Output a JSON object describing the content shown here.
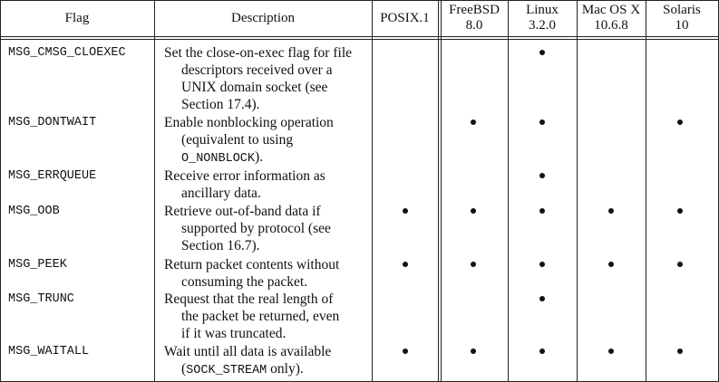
{
  "headers": {
    "flag": "Flag",
    "description": "Description",
    "posix": [
      "POSIX.1"
    ],
    "freebsd": [
      "FreeBSD",
      "8.0"
    ],
    "linux": [
      "Linux",
      "3.2.0"
    ],
    "macos": [
      "Mac OS X",
      "10.6.8"
    ],
    "solaris": [
      "Solaris",
      "10"
    ]
  },
  "rows": [
    {
      "flag": "MSG_CMSG_CLOEXEC",
      "description": [
        "Set the close-on-exec flag for file",
        "descriptors received over a",
        "UNIX domain socket (see",
        "Section 17.4)."
      ],
      "support": {
        "posix": false,
        "freebsd": false,
        "linux": true,
        "macos": false,
        "solaris": false
      }
    },
    {
      "flag": "MSG_DONTWAIT",
      "description": [
        "Enable nonblocking operation",
        "(equivalent to using",
        "O_NONBLOCK",
        ")."
      ],
      "support": {
        "posix": false,
        "freebsd": true,
        "linux": true,
        "macos": false,
        "solaris": true
      }
    },
    {
      "flag": "MSG_ERRQUEUE",
      "description": [
        "Receive error information as",
        "ancillary data."
      ],
      "support": {
        "posix": false,
        "freebsd": false,
        "linux": true,
        "macos": false,
        "solaris": false
      }
    },
    {
      "flag": "MSG_OOB",
      "description": [
        "Retrieve out-of-band data if",
        "supported by protocol (see",
        "Section 16.7)."
      ],
      "support": {
        "posix": true,
        "freebsd": true,
        "linux": true,
        "macos": true,
        "solaris": true
      }
    },
    {
      "flag": "MSG_PEEK",
      "description": [
        "Return packet contents without",
        "consuming the packet."
      ],
      "support": {
        "posix": true,
        "freebsd": true,
        "linux": true,
        "macos": true,
        "solaris": true
      }
    },
    {
      "flag": "MSG_TRUNC",
      "description": [
        "Request that the real length of",
        "the packet be returned, even",
        "if it was truncated."
      ],
      "support": {
        "posix": false,
        "freebsd": false,
        "linux": true,
        "macos": false,
        "solaris": false
      }
    },
    {
      "flag": "MSG_WAITALL",
      "description": [
        "Wait until all data is available",
        "(",
        "SOCK_STREAM",
        " only)."
      ],
      "support": {
        "posix": true,
        "freebsd": true,
        "linux": true,
        "macos": true,
        "solaris": true
      }
    }
  ]
}
